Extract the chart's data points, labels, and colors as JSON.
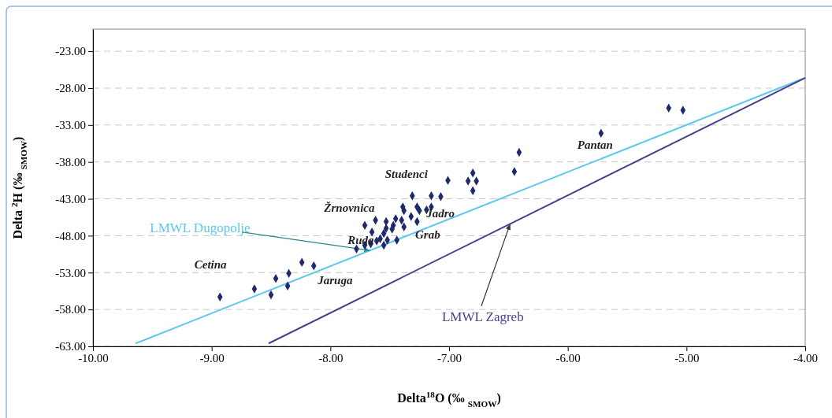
{
  "chart_data": {
    "type": "scatter",
    "xlabel": "Delta$^{18}$O (‰ $_{SMOW}$)",
    "ylabel": "Delta $^{2}$H (‰ $_{SMOW}$)",
    "xlim": [
      -10,
      -4
    ],
    "ylim": [
      -63,
      -20
    ],
    "xticks": [
      {
        "value": -10,
        "label": "-10.00"
      },
      {
        "value": -9,
        "label": "-9.00"
      },
      {
        "value": -8,
        "label": "-8.00"
      },
      {
        "value": -7,
        "label": "-7.00"
      },
      {
        "value": -6,
        "label": "-6.00"
      },
      {
        "value": -5,
        "label": "-5.00"
      },
      {
        "value": -4,
        "label": "-4.00"
      }
    ],
    "yticks": [
      {
        "value": -63,
        "label": "-63.00"
      },
      {
        "value": -58,
        "label": "-58.00"
      },
      {
        "value": -53,
        "label": "-53.00"
      },
      {
        "value": -48,
        "label": "-48.00"
      },
      {
        "value": -43,
        "label": "-43.00"
      },
      {
        "value": -38,
        "label": "-38.00"
      },
      {
        "value": -33,
        "label": "-33.00"
      },
      {
        "value": -28,
        "label": "-28.00"
      },
      {
        "value": -23,
        "label": "-23.00"
      }
    ],
    "grid": "y",
    "series": [
      {
        "marker": "diamond",
        "color": "#1f2a6b",
        "x": [
          -8.93,
          -8.64,
          -8.5,
          -8.46,
          -8.36,
          -8.35,
          -8.24,
          -8.14,
          -7.78,
          -7.71,
          -7.65,
          -7.62,
          -7.71,
          -7.66,
          -7.61,
          -7.58,
          -7.55,
          -7.55,
          -7.53,
          -7.53,
          -7.52,
          -7.48,
          -7.45,
          -7.44,
          -7.47,
          -7.4,
          -7.39,
          -7.38,
          -7.38,
          -7.32,
          -7.31,
          -7.27,
          -7.27,
          -7.25,
          -7.19,
          -7.15,
          -7.15,
          -7.07,
          -7.01,
          -6.84,
          -6.8,
          -6.77,
          -6.8,
          -6.45,
          -6.41,
          -5.72,
          -5.15,
          -5.03
        ],
        "values": [
          -56.3,
          -55.2,
          -56.0,
          -53.8,
          -54.8,
          -53.1,
          -51.6,
          -52.1,
          -49.8,
          -46.6,
          -47.5,
          -45.9,
          -49.3,
          -49.1,
          -48.7,
          -48.4,
          -49.3,
          -47.7,
          -46.1,
          -47.0,
          -48.6,
          -47.1,
          -45.7,
          -48.6,
          -46.6,
          -45.9,
          -44.1,
          -44.6,
          -46.8,
          -45.4,
          -42.6,
          -44.1,
          -46.1,
          -44.6,
          -44.5,
          -44.1,
          -42.6,
          -42.7,
          -40.5,
          -40.6,
          -39.5,
          -40.6,
          -41.9,
          -39.3,
          -36.7,
          -34.1,
          -30.7,
          -31.0
        ]
      },
      {
        "type": "line",
        "name": "LMWL Dugopolje",
        "color": "#5bc8ec",
        "x": [
          -9.64,
          -4.0
        ],
        "values": [
          -62.6,
          -26.6
        ]
      },
      {
        "type": "line",
        "name": "LMWL Zagreb",
        "color": "#4b3f8c",
        "x": [
          -8.52,
          -4.0
        ],
        "values": [
          -62.6,
          -26.6
        ]
      }
    ],
    "annotations": [
      "Cetina",
      "Jaruga",
      "Ruda",
      "Grab",
      "Žrnovnica",
      "Jadro",
      "Studenci",
      "Pantan"
    ]
  }
}
